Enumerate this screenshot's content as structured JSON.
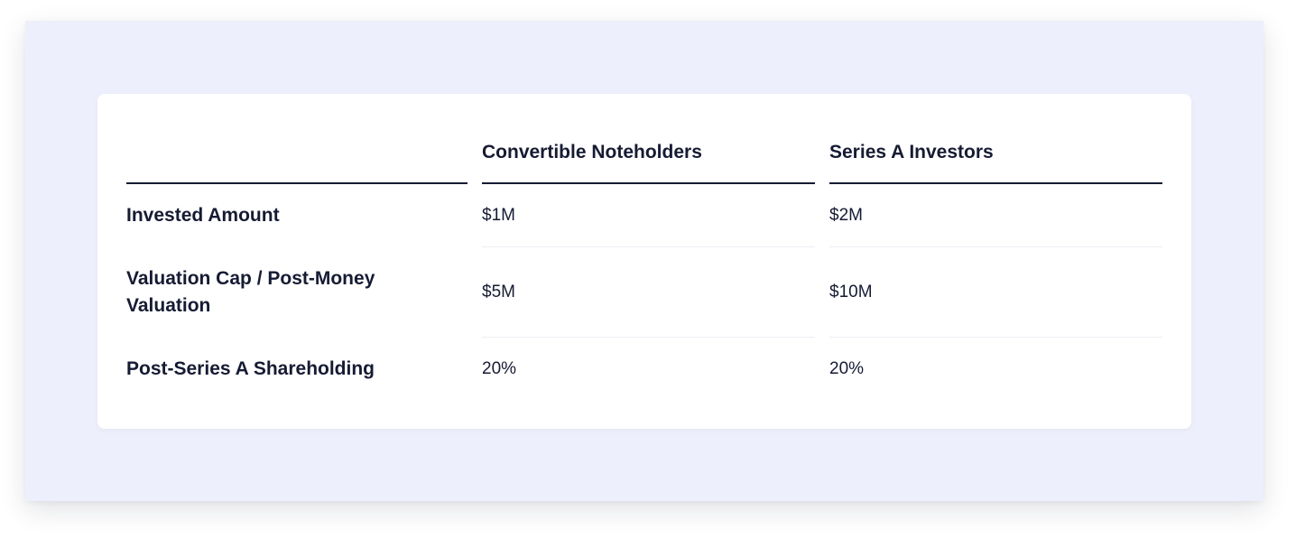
{
  "table": {
    "headers": [
      "",
      "Convertible Noteholders",
      "Series A Investors"
    ],
    "rows": [
      {
        "label": "Invested Amount",
        "values": [
          "$1M",
          "$2M"
        ]
      },
      {
        "label": "Valuation Cap / Post-Money Valuation",
        "values": [
          "$5M",
          "$10M"
        ]
      },
      {
        "label": "Post-Series A Shareholding",
        "values": [
          "20%",
          "20%"
        ]
      }
    ]
  }
}
